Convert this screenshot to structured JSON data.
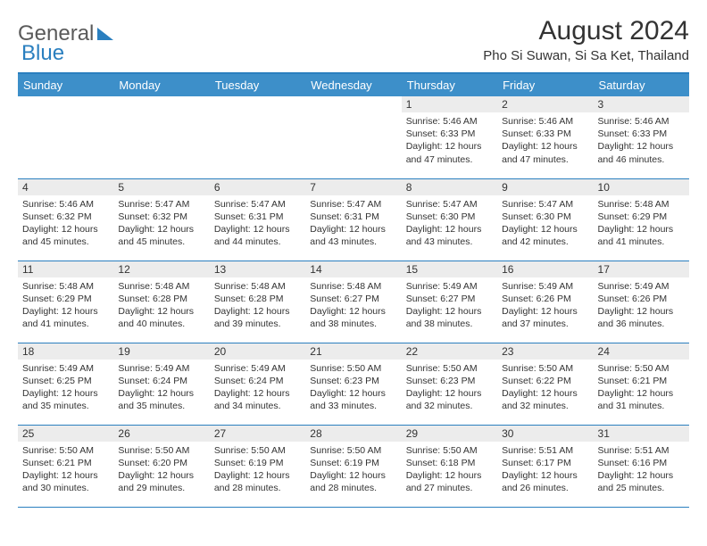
{
  "logo": {
    "part1": "General",
    "part2": "Blue"
  },
  "title": "August 2024",
  "location": "Pho Si Suwan, Si Sa Ket, Thailand",
  "colors": {
    "header_bg": "#3d8fc9",
    "border": "#2a7fbf",
    "daynum_bg": "#ececec",
    "text": "#333333"
  },
  "font": {
    "title_size": 30,
    "location_size": 15,
    "dayheader_size": 13,
    "daynum_size": 12,
    "body_size": 10.5
  },
  "day_headers": [
    "Sunday",
    "Monday",
    "Tuesday",
    "Wednesday",
    "Thursday",
    "Friday",
    "Saturday"
  ],
  "weeks": [
    [
      {
        "n": "",
        "sunrise": "",
        "sunset": "",
        "daylight": ""
      },
      {
        "n": "",
        "sunrise": "",
        "sunset": "",
        "daylight": ""
      },
      {
        "n": "",
        "sunrise": "",
        "sunset": "",
        "daylight": ""
      },
      {
        "n": "",
        "sunrise": "",
        "sunset": "",
        "daylight": ""
      },
      {
        "n": "1",
        "sunrise": "Sunrise: 5:46 AM",
        "sunset": "Sunset: 6:33 PM",
        "daylight": "Daylight: 12 hours and 47 minutes."
      },
      {
        "n": "2",
        "sunrise": "Sunrise: 5:46 AM",
        "sunset": "Sunset: 6:33 PM",
        "daylight": "Daylight: 12 hours and 47 minutes."
      },
      {
        "n": "3",
        "sunrise": "Sunrise: 5:46 AM",
        "sunset": "Sunset: 6:33 PM",
        "daylight": "Daylight: 12 hours and 46 minutes."
      }
    ],
    [
      {
        "n": "4",
        "sunrise": "Sunrise: 5:46 AM",
        "sunset": "Sunset: 6:32 PM",
        "daylight": "Daylight: 12 hours and 45 minutes."
      },
      {
        "n": "5",
        "sunrise": "Sunrise: 5:47 AM",
        "sunset": "Sunset: 6:32 PM",
        "daylight": "Daylight: 12 hours and 45 minutes."
      },
      {
        "n": "6",
        "sunrise": "Sunrise: 5:47 AM",
        "sunset": "Sunset: 6:31 PM",
        "daylight": "Daylight: 12 hours and 44 minutes."
      },
      {
        "n": "7",
        "sunrise": "Sunrise: 5:47 AM",
        "sunset": "Sunset: 6:31 PM",
        "daylight": "Daylight: 12 hours and 43 minutes."
      },
      {
        "n": "8",
        "sunrise": "Sunrise: 5:47 AM",
        "sunset": "Sunset: 6:30 PM",
        "daylight": "Daylight: 12 hours and 43 minutes."
      },
      {
        "n": "9",
        "sunrise": "Sunrise: 5:47 AM",
        "sunset": "Sunset: 6:30 PM",
        "daylight": "Daylight: 12 hours and 42 minutes."
      },
      {
        "n": "10",
        "sunrise": "Sunrise: 5:48 AM",
        "sunset": "Sunset: 6:29 PM",
        "daylight": "Daylight: 12 hours and 41 minutes."
      }
    ],
    [
      {
        "n": "11",
        "sunrise": "Sunrise: 5:48 AM",
        "sunset": "Sunset: 6:29 PM",
        "daylight": "Daylight: 12 hours and 41 minutes."
      },
      {
        "n": "12",
        "sunrise": "Sunrise: 5:48 AM",
        "sunset": "Sunset: 6:28 PM",
        "daylight": "Daylight: 12 hours and 40 minutes."
      },
      {
        "n": "13",
        "sunrise": "Sunrise: 5:48 AM",
        "sunset": "Sunset: 6:28 PM",
        "daylight": "Daylight: 12 hours and 39 minutes."
      },
      {
        "n": "14",
        "sunrise": "Sunrise: 5:48 AM",
        "sunset": "Sunset: 6:27 PM",
        "daylight": "Daylight: 12 hours and 38 minutes."
      },
      {
        "n": "15",
        "sunrise": "Sunrise: 5:49 AM",
        "sunset": "Sunset: 6:27 PM",
        "daylight": "Daylight: 12 hours and 38 minutes."
      },
      {
        "n": "16",
        "sunrise": "Sunrise: 5:49 AM",
        "sunset": "Sunset: 6:26 PM",
        "daylight": "Daylight: 12 hours and 37 minutes."
      },
      {
        "n": "17",
        "sunrise": "Sunrise: 5:49 AM",
        "sunset": "Sunset: 6:26 PM",
        "daylight": "Daylight: 12 hours and 36 minutes."
      }
    ],
    [
      {
        "n": "18",
        "sunrise": "Sunrise: 5:49 AM",
        "sunset": "Sunset: 6:25 PM",
        "daylight": "Daylight: 12 hours and 35 minutes."
      },
      {
        "n": "19",
        "sunrise": "Sunrise: 5:49 AM",
        "sunset": "Sunset: 6:24 PM",
        "daylight": "Daylight: 12 hours and 35 minutes."
      },
      {
        "n": "20",
        "sunrise": "Sunrise: 5:49 AM",
        "sunset": "Sunset: 6:24 PM",
        "daylight": "Daylight: 12 hours and 34 minutes."
      },
      {
        "n": "21",
        "sunrise": "Sunrise: 5:50 AM",
        "sunset": "Sunset: 6:23 PM",
        "daylight": "Daylight: 12 hours and 33 minutes."
      },
      {
        "n": "22",
        "sunrise": "Sunrise: 5:50 AM",
        "sunset": "Sunset: 6:23 PM",
        "daylight": "Daylight: 12 hours and 32 minutes."
      },
      {
        "n": "23",
        "sunrise": "Sunrise: 5:50 AM",
        "sunset": "Sunset: 6:22 PM",
        "daylight": "Daylight: 12 hours and 32 minutes."
      },
      {
        "n": "24",
        "sunrise": "Sunrise: 5:50 AM",
        "sunset": "Sunset: 6:21 PM",
        "daylight": "Daylight: 12 hours and 31 minutes."
      }
    ],
    [
      {
        "n": "25",
        "sunrise": "Sunrise: 5:50 AM",
        "sunset": "Sunset: 6:21 PM",
        "daylight": "Daylight: 12 hours and 30 minutes."
      },
      {
        "n": "26",
        "sunrise": "Sunrise: 5:50 AM",
        "sunset": "Sunset: 6:20 PM",
        "daylight": "Daylight: 12 hours and 29 minutes."
      },
      {
        "n": "27",
        "sunrise": "Sunrise: 5:50 AM",
        "sunset": "Sunset: 6:19 PM",
        "daylight": "Daylight: 12 hours and 28 minutes."
      },
      {
        "n": "28",
        "sunrise": "Sunrise: 5:50 AM",
        "sunset": "Sunset: 6:19 PM",
        "daylight": "Daylight: 12 hours and 28 minutes."
      },
      {
        "n": "29",
        "sunrise": "Sunrise: 5:50 AM",
        "sunset": "Sunset: 6:18 PM",
        "daylight": "Daylight: 12 hours and 27 minutes."
      },
      {
        "n": "30",
        "sunrise": "Sunrise: 5:51 AM",
        "sunset": "Sunset: 6:17 PM",
        "daylight": "Daylight: 12 hours and 26 minutes."
      },
      {
        "n": "31",
        "sunrise": "Sunrise: 5:51 AM",
        "sunset": "Sunset: 6:16 PM",
        "daylight": "Daylight: 12 hours and 25 minutes."
      }
    ]
  ]
}
